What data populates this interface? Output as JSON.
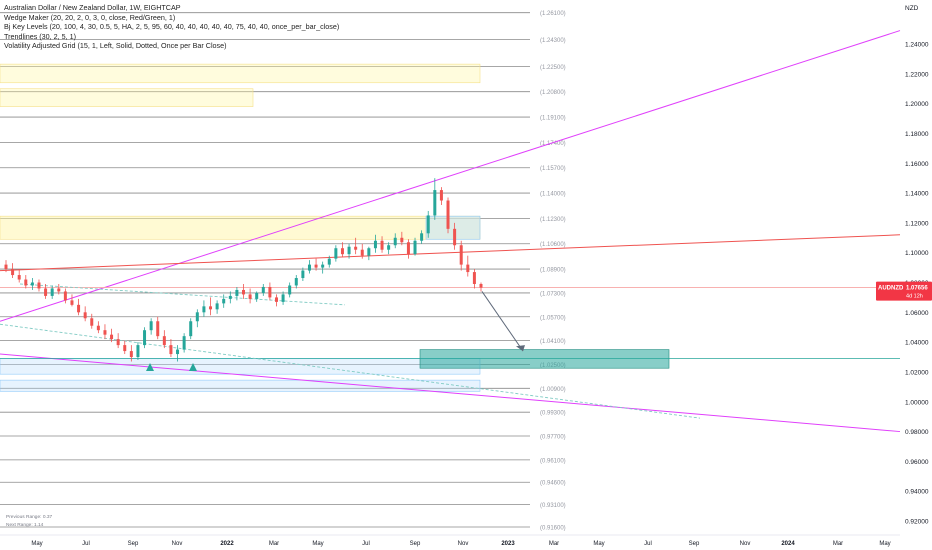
{
  "legend": {
    "title": "Australian Dollar / New Zealand Dollar, 1W, EIGHTCAP",
    "indicators": [
      "Wedge Maker (20, 20, 2, 0, 3, 0, close, Red/Green, 1)",
      "Bj Key Levels (20, 100, 4, 30, 0.5, 5, HA, 2, 5, 95, 60, 40, 40, 40, 40, 40, 75, 40, 40, once_per_bar_close)",
      "Trendlines (30, 2, 5, 1)",
      "Volatility Adjusted Grid (15, 1, Left, Solid, Dotted, Once per Bar Close)"
    ]
  },
  "stats": {
    "previous_range_label": "Previous Range:",
    "previous_range_value": "0.37",
    "next_range_label": "Next Range:",
    "next_range_value": "1.14"
  },
  "colors": {
    "up": "#26a69a",
    "down": "#ef5350",
    "tag": "#f23645",
    "zone_yellow": "#fff59d",
    "zone_green": "#26a69a",
    "zone_blue": "#bbdefb",
    "wedge_pink": "#e040fb",
    "wedge_red": "#ef5350"
  },
  "chart_data": {
    "type": "candlestick",
    "currency": "NZD",
    "symbol": "AUDNZD",
    "last_price": "1.07656",
    "countdown": "4d 12h",
    "ylim": [
      0.912,
      1.268
    ],
    "y_ticks": [
      "1.24000",
      "1.22000",
      "1.20000",
      "1.18000",
      "1.16000",
      "1.14000",
      "1.12000",
      "1.10000",
      "1.08000",
      "1.06000",
      "1.04000",
      "1.02000",
      "1.00000",
      "0.98000",
      "0.96000",
      "0.94000",
      "0.92000"
    ],
    "x_ticks": [
      "May",
      "Jul",
      "Sep",
      "Nov",
      "2022",
      "Mar",
      "May",
      "Jul",
      "Sep",
      "Nov",
      "2023",
      "Mar",
      "May",
      "Jul",
      "Sep",
      "Nov",
      "2024",
      "Mar",
      "May"
    ],
    "grid_levels": [
      "1.26100",
      "1.24300",
      "1.22500",
      "1.20800",
      "1.19100",
      "1.17400",
      "1.15700",
      "1.14000",
      "1.12300",
      "1.10600",
      "1.08900",
      "1.07300",
      "1.05700",
      "1.04100",
      "1.02500",
      "1.00900",
      "0.99300",
      "0.97700",
      "0.96100",
      "0.94600",
      "0.93100",
      "0.91600"
    ],
    "candles": [
      [
        1.092,
        1.095,
        1.087,
        1.089
      ],
      [
        1.089,
        1.093,
        1.083,
        1.085
      ],
      [
        1.085,
        1.089,
        1.08,
        1.082
      ],
      [
        1.082,
        1.085,
        1.076,
        1.078
      ],
      [
        1.078,
        1.083,
        1.075,
        1.08
      ],
      [
        1.08,
        1.082,
        1.074,
        1.076
      ],
      [
        1.076,
        1.079,
        1.069,
        1.071
      ],
      [
        1.071,
        1.078,
        1.069,
        1.076
      ],
      [
        1.076,
        1.079,
        1.072,
        1.074
      ],
      [
        1.074,
        1.076,
        1.066,
        1.068
      ],
      [
        1.068,
        1.072,
        1.064,
        1.065
      ],
      [
        1.065,
        1.069,
        1.058,
        1.06
      ],
      [
        1.06,
        1.064,
        1.054,
        1.056
      ],
      [
        1.056,
        1.059,
        1.049,
        1.051
      ],
      [
        1.051,
        1.054,
        1.046,
        1.048
      ],
      [
        1.048,
        1.052,
        1.042,
        1.045
      ],
      [
        1.045,
        1.049,
        1.04,
        1.042
      ],
      [
        1.042,
        1.046,
        1.036,
        1.038
      ],
      [
        1.038,
        1.041,
        1.032,
        1.034
      ],
      [
        1.034,
        1.038,
        1.027,
        1.03
      ],
      [
        1.03,
        1.04,
        1.028,
        1.038
      ],
      [
        1.038,
        1.05,
        1.036,
        1.048
      ],
      [
        1.048,
        1.056,
        1.045,
        1.054
      ],
      [
        1.054,
        1.057,
        1.042,
        1.044
      ],
      [
        1.044,
        1.048,
        1.036,
        1.038
      ],
      [
        1.038,
        1.042,
        1.03,
        1.032
      ],
      [
        1.032,
        1.038,
        1.027,
        1.035
      ],
      [
        1.035,
        1.046,
        1.033,
        1.044
      ],
      [
        1.044,
        1.056,
        1.042,
        1.054
      ],
      [
        1.054,
        1.062,
        1.05,
        1.06
      ],
      [
        1.06,
        1.068,
        1.057,
        1.064
      ],
      [
        1.064,
        1.07,
        1.058,
        1.062
      ],
      [
        1.062,
        1.068,
        1.059,
        1.066
      ],
      [
        1.066,
        1.072,
        1.063,
        1.069
      ],
      [
        1.069,
        1.074,
        1.066,
        1.071
      ],
      [
        1.071,
        1.077,
        1.068,
        1.075
      ],
      [
        1.075,
        1.079,
        1.069,
        1.072
      ],
      [
        1.072,
        1.076,
        1.066,
        1.069
      ],
      [
        1.069,
        1.074,
        1.067,
        1.073
      ],
      [
        1.073,
        1.079,
        1.071,
        1.077
      ],
      [
        1.077,
        1.08,
        1.068,
        1.07
      ],
      [
        1.07,
        1.072,
        1.064,
        1.067
      ],
      [
        1.067,
        1.074,
        1.065,
        1.072
      ],
      [
        1.072,
        1.08,
        1.07,
        1.078
      ],
      [
        1.078,
        1.085,
        1.076,
        1.083
      ],
      [
        1.083,
        1.09,
        1.081,
        1.088
      ],
      [
        1.088,
        1.095,
        1.086,
        1.092
      ],
      [
        1.092,
        1.096,
        1.088,
        1.09
      ],
      [
        1.09,
        1.094,
        1.086,
        1.092
      ],
      [
        1.092,
        1.098,
        1.09,
        1.096
      ],
      [
        1.096,
        1.105,
        1.094,
        1.103
      ],
      [
        1.103,
        1.107,
        1.097,
        1.099
      ],
      [
        1.099,
        1.106,
        1.096,
        1.104
      ],
      [
        1.104,
        1.11,
        1.099,
        1.102
      ],
      [
        1.102,
        1.106,
        1.096,
        1.098
      ],
      [
        1.098,
        1.104,
        1.095,
        1.103
      ],
      [
        1.103,
        1.112,
        1.1,
        1.108
      ],
      [
        1.108,
        1.111,
        1.1,
        1.102
      ],
      [
        1.102,
        1.107,
        1.099,
        1.105
      ],
      [
        1.105,
        1.113,
        1.103,
        1.11
      ],
      [
        1.11,
        1.114,
        1.105,
        1.107
      ],
      [
        1.107,
        1.109,
        1.096,
        1.099
      ],
      [
        1.099,
        1.11,
        1.098,
        1.108
      ],
      [
        1.108,
        1.115,
        1.106,
        1.113
      ],
      [
        1.113,
        1.128,
        1.11,
        1.125
      ],
      [
        1.125,
        1.15,
        1.122,
        1.142
      ],
      [
        1.142,
        1.144,
        1.132,
        1.135
      ],
      [
        1.135,
        1.137,
        1.113,
        1.116
      ],
      [
        1.116,
        1.12,
        1.102,
        1.105
      ],
      [
        1.105,
        1.108,
        1.088,
        1.092
      ],
      [
        1.092,
        1.098,
        1.084,
        1.087
      ],
      [
        1.087,
        1.089,
        1.076,
        1.079
      ],
      [
        1.079,
        1.08,
        1.074,
        1.0766
      ]
    ]
  }
}
